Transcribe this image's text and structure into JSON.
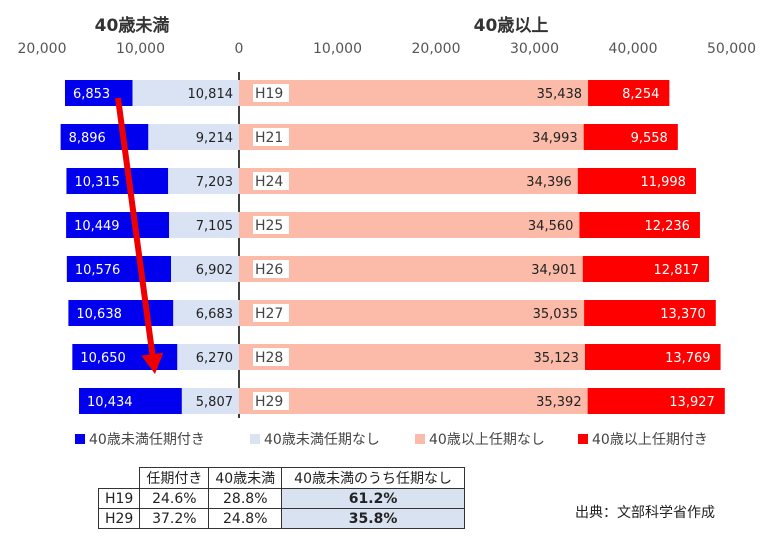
{
  "chart_data": {
    "type": "bar",
    "orientation": "horizontal",
    "layout": "diverging",
    "titles": {
      "left": "40歳未満",
      "right": "40歳以上"
    },
    "categories": [
      "H19",
      "H21",
      "H24",
      "H25",
      "H26",
      "H27",
      "H28",
      "H29"
    ],
    "series": [
      {
        "name": "40歳未満任期付き",
        "side": "left",
        "color": "#0000ee",
        "values": [
          6853,
          8896,
          10315,
          10449,
          10576,
          10638,
          10650,
          10434
        ],
        "labels": [
          "6,853",
          "8,896",
          "10,315",
          "10,449",
          "10,576",
          "10,638",
          "10,650",
          "10,434"
        ]
      },
      {
        "name": "40歳未満任期なし",
        "side": "left",
        "color": "#dae3f3",
        "values": [
          10814,
          9214,
          7203,
          7105,
          6902,
          6683,
          6270,
          5807
        ],
        "labels": [
          "10,814",
          "9,214",
          "7,203",
          "7,105",
          "6,902",
          "6,683",
          "6,270",
          "5,807"
        ]
      },
      {
        "name": "40歳以上任期なし",
        "side": "right",
        "color": "#fbbba8",
        "values": [
          35438,
          34993,
          34396,
          34560,
          34901,
          35035,
          35123,
          35392
        ],
        "labels": [
          "35,438",
          "34,993",
          "34,396",
          "34,560",
          "34,901",
          "35,035",
          "35,123",
          "35,392"
        ]
      },
      {
        "name": "40歳以上任期付き",
        "side": "right",
        "color": "#ff0000",
        "values": [
          8254,
          9558,
          11998,
          12236,
          12817,
          13370,
          13769,
          13927
        ],
        "labels": [
          "8,254",
          "9,558",
          "11,998",
          "12,236",
          "12,817",
          "13,370",
          "13,769",
          "13,927"
        ]
      }
    ],
    "left_axis": {
      "ticks": [
        "20,000",
        "10,000",
        "0"
      ],
      "range": [
        0,
        20000
      ]
    },
    "right_axis": {
      "ticks": [
        "10,000",
        "20,000",
        "30,000",
        "40,000",
        "50,000"
      ],
      "range": [
        0,
        50000
      ]
    },
    "legend_order": [
      "40歳未満任期付き",
      "40歳未満任期なし",
      "40歳以上任期なし",
      "40歳以上任期付き"
    ],
    "legend_position": "bottom",
    "arrow": {
      "from_category": "H19",
      "to_category": "H29",
      "color": "#ee0000"
    }
  },
  "table": {
    "headers": [
      "任期付き",
      "40歳未満",
      "40歳未満のうち任期なし"
    ],
    "rows": [
      {
        "label": "H19",
        "cells": [
          "24.6%",
          "28.8%",
          "61.2%"
        ]
      },
      {
        "label": "H29",
        "cells": [
          "37.2%",
          "24.8%",
          "35.8%"
        ]
      }
    ]
  },
  "source": "出典：文部科学省作成"
}
